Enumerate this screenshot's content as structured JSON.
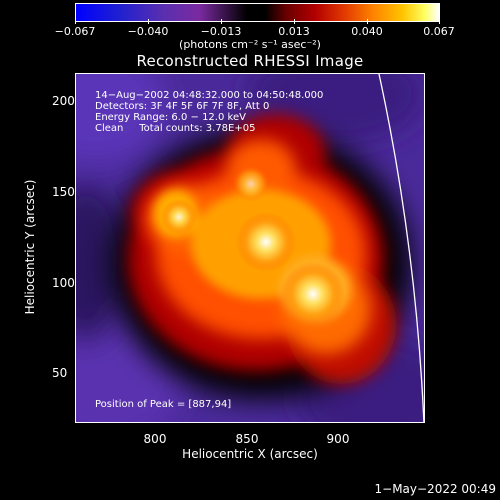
{
  "colorbar": {
    "ticks": [
      "−0.067",
      "−0.040",
      "−0.013",
      "0.013",
      "0.040",
      "0.067"
    ],
    "units": "(photons cm⁻² s⁻¹ asec⁻²)"
  },
  "title": "Reconstructed RHESSI Image",
  "info": {
    "time_range": "14−Aug−2002 04:48:32.000 to 04:50:48.000",
    "detectors": "Detectors: 3F 4F 5F 6F 7F 8F, Att 0",
    "energy": "Energy Range: 6.0 − 12.0 keV",
    "clean": "Clean     Total counts: 3.78E+05",
    "peak": "Position of Peak = [887,94]"
  },
  "axes": {
    "xlabel": "Heliocentric X (arcsec)",
    "ylabel": "Heliocentric Y (arcsec)",
    "x_ticks": [
      "800",
      "850",
      "900"
    ],
    "y_ticks": [
      "200",
      "150",
      "100",
      "50"
    ]
  },
  "timestamp": "1−May−2022 00:49",
  "colors": {
    "background": "#000000",
    "text": "#ffffff"
  }
}
